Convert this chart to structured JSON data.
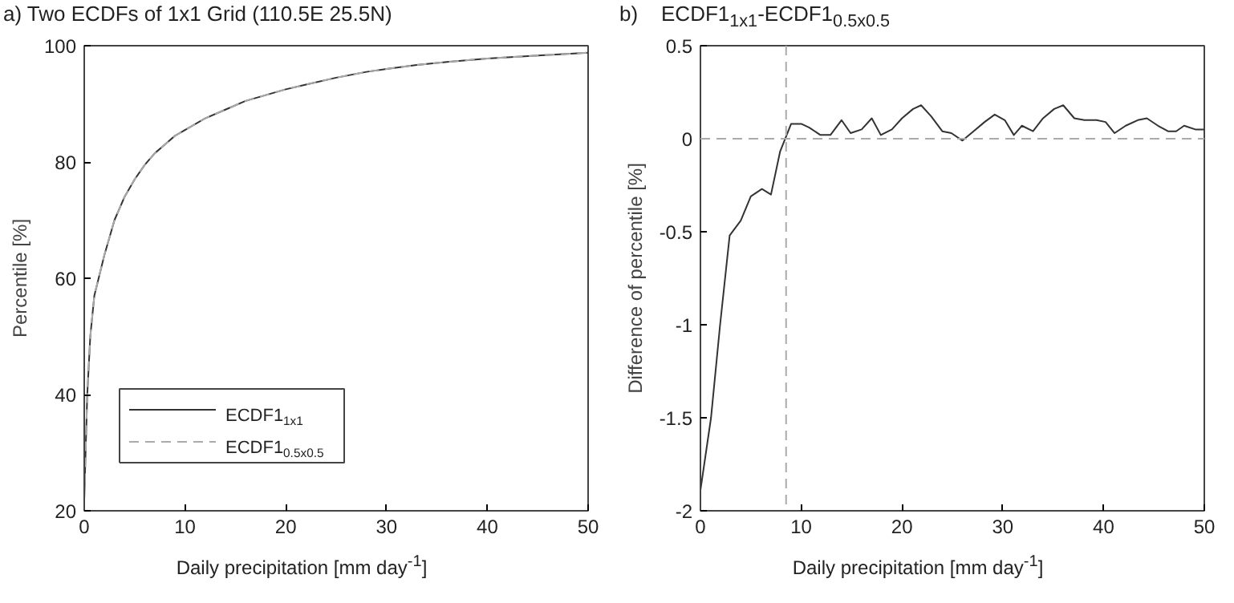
{
  "chart_data": [
    {
      "type": "line",
      "title": "a) Two ECDFs of 1x1 Grid (110.5E 25.5N)",
      "xlabel": "Daily precipitation [mm day$^{-1}$]",
      "ylabel": "Percentile [%]",
      "x": [
        0,
        0.3,
        0.6,
        1,
        2,
        3,
        4,
        5,
        6,
        7,
        8,
        9,
        10,
        12,
        14,
        16,
        18,
        20,
        22,
        25,
        28,
        30,
        33,
        36,
        40,
        45,
        50
      ],
      "series": [
        {
          "name": "ECDF1$_{1x1}$",
          "color": "#333333",
          "line_style": "solid",
          "values": [
            22,
            40,
            50,
            57,
            64,
            70,
            74,
            77,
            79.5,
            81.5,
            83,
            84.5,
            85.5,
            87.5,
            89,
            90.5,
            91.5,
            92.5,
            93.3,
            94.5,
            95.5,
            96,
            96.7,
            97.2,
            97.8,
            98.3,
            98.8
          ]
        },
        {
          "name": "ECDF1$_{0.5x0.5}$",
          "color": "#aaaaaa",
          "line_style": "dashed",
          "values": [
            22,
            40,
            50,
            57,
            64,
            70,
            74,
            77,
            79.5,
            81.5,
            83,
            84.5,
            85.5,
            87.5,
            89,
            90.5,
            91.5,
            92.5,
            93.3,
            94.5,
            95.5,
            96,
            96.7,
            97.2,
            97.8,
            98.3,
            98.8
          ]
        }
      ],
      "xlim": [
        0,
        50
      ],
      "xticks": [
        0,
        10,
        20,
        30,
        40,
        50
      ],
      "ylim": [
        20,
        100
      ],
      "yticks": [
        20,
        40,
        60,
        80,
        100
      ],
      "grid": false,
      "legend": "bottom left"
    },
    {
      "type": "line",
      "title": "b)    ECDF1$_{1x1}$-ECDF1$_{0.5x0.5}$",
      "xlabel": "Daily precipitation [mm day$^{-1}$]",
      "ylabel": "Difference of percentile [%]",
      "x": [
        0,
        1.05,
        1.95,
        2.9,
        4,
        5,
        6.1,
        7,
        7.9,
        9,
        10,
        10.8,
        11.9,
        12.9,
        14,
        14.9,
        16,
        17,
        17.9,
        19,
        20,
        21.1,
        21.9,
        22.9,
        24,
        24.9,
        26,
        27.1,
        28.2,
        29.2,
        30.2,
        31.1,
        31.9,
        33,
        34,
        35.1,
        36,
        37.1,
        38.1,
        39.3,
        40.2,
        41.1,
        42.2,
        43.4,
        44.3,
        45.4,
        46.4,
        47.2,
        48,
        49.1,
        50
      ],
      "series": [
        {
          "color": "#333333",
          "line_style": "solid",
          "values": [
            -1.89,
            -1.5,
            -1.0,
            -0.52,
            -0.44,
            -0.31,
            -0.27,
            -0.3,
            -0.07,
            0.08,
            0.08,
            0.06,
            0.02,
            0.02,
            0.1,
            0.03,
            0.05,
            0.11,
            0.02,
            0.05,
            0.11,
            0.16,
            0.18,
            0.12,
            0.04,
            0.03,
            -0.01,
            0.04,
            0.09,
            0.13,
            0.1,
            0.02,
            0.07,
            0.04,
            0.11,
            0.16,
            0.18,
            0.11,
            0.1,
            0.1,
            0.09,
            0.03,
            0.07,
            0.1,
            0.11,
            0.07,
            0.04,
            0.04,
            0.07,
            0.05,
            0.05
          ]
        }
      ],
      "ref_lines": [
        {
          "axis": "x",
          "value": 8.5,
          "color": "#aaaaaa",
          "line_style": "dashed"
        },
        {
          "axis": "y",
          "value": 0,
          "color": "#aaaaaa",
          "line_style": "dashed"
        }
      ],
      "xlim": [
        0,
        50
      ],
      "xticks": [
        0,
        10,
        20,
        30,
        40,
        50
      ],
      "ylim": [
        -2,
        0.5
      ],
      "yticks": [
        -2,
        -1.5,
        -1,
        -0.5,
        0,
        0.5
      ],
      "grid": false,
      "legend": false
    }
  ]
}
